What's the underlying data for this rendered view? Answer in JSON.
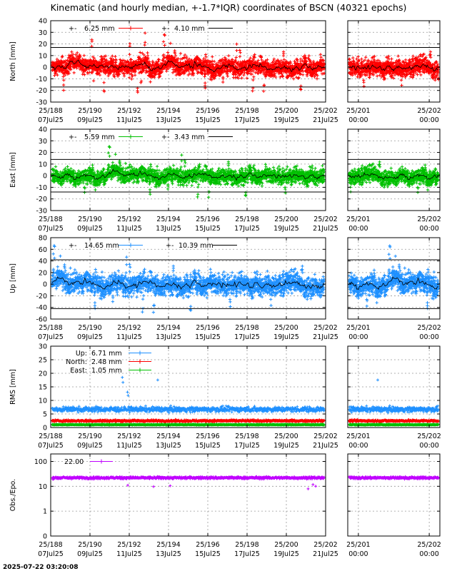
{
  "title": "Kinematic (and hourly median, +-1.7*IQR) coordinates of BSCN (40321 epochs)",
  "footer_timestamp": "2025-07-22 03:20:08",
  "colors": {
    "north": "#ff0000",
    "east": "#00c000",
    "up": "#1e90ff",
    "median": "#000000",
    "obs": "#c000ff",
    "iqr": "#000000",
    "grid": "#999999"
  },
  "x_main": {
    "ticks": [
      {
        "value": 188,
        "top": "25/188",
        "bottom": "07Jul25"
      },
      {
        "value": 190,
        "top": "25/190",
        "bottom": "09Jul25"
      },
      {
        "value": 192,
        "top": "25/192",
        "bottom": "11Jul25"
      },
      {
        "value": 194,
        "top": "25/194",
        "bottom": "13Jul25"
      },
      {
        "value": 196,
        "top": "25/196",
        "bottom": "15Jul25"
      },
      {
        "value": 198,
        "top": "25/198",
        "bottom": "17Jul25"
      },
      {
        "value": 200,
        "top": "25/200",
        "bottom": "19Jul25"
      },
      {
        "value": 202,
        "top": "25/202",
        "bottom": "21Jul25"
      }
    ],
    "range": [
      188,
      202
    ]
  },
  "x_zoom": {
    "ticks": [
      {
        "value": 201,
        "top": "25/201",
        "bottom": "00:00"
      },
      {
        "value": 202,
        "top": "25/202",
        "bottom": "00:00"
      }
    ],
    "range": [
      200.85,
      202.15
    ]
  },
  "chart_data": [
    {
      "id": "north",
      "type": "scatter",
      "ylabel": "North [mm]",
      "ylim": [
        -30,
        40
      ],
      "yticks": [
        -30,
        -20,
        -10,
        0,
        10,
        20,
        30,
        40
      ],
      "iqr_lines": [
        17,
        -17
      ],
      "legend": [
        {
          "label": "6.25 mm",
          "kind": "points"
        },
        {
          "label": "4.10 mm",
          "kind": "median"
        }
      ],
      "series": [
        {
          "kind": "points",
          "spread": 6.25
        },
        {
          "kind": "median",
          "spread": 4.1
        }
      ]
    },
    {
      "id": "east",
      "type": "scatter",
      "ylabel": "East [mm]",
      "ylim": [
        -30,
        40
      ],
      "yticks": [
        -30,
        -20,
        -10,
        0,
        10,
        20,
        30,
        40
      ],
      "iqr_lines": [
        14,
        -14
      ],
      "legend": [
        {
          "label": "5.59 mm",
          "kind": "points"
        },
        {
          "label": "3.43 mm",
          "kind": "median"
        }
      ],
      "series": [
        {
          "kind": "points",
          "spread": 5.59
        },
        {
          "kind": "median",
          "spread": 3.43
        }
      ]
    },
    {
      "id": "up",
      "type": "scatter",
      "ylabel": "Up [mm]",
      "ylim": [
        -60,
        80
      ],
      "yticks": [
        -60,
        -40,
        -20,
        0,
        20,
        40,
        60,
        80
      ],
      "iqr_lines": [
        42,
        -42
      ],
      "legend": [
        {
          "label": "14.65 mm",
          "kind": "points"
        },
        {
          "label": "10.39 mm",
          "kind": "median"
        }
      ],
      "series": [
        {
          "kind": "points",
          "spread": 14.65
        },
        {
          "kind": "median",
          "spread": 10.39
        }
      ]
    },
    {
      "id": "rms",
      "type": "scatter",
      "ylabel": "RMS [mm]",
      "ylim": [
        0,
        30
      ],
      "yticks": [
        0,
        5,
        10,
        15,
        20,
        25,
        30
      ],
      "legend": [
        {
          "name": "Up:",
          "label": "6.71 mm",
          "series": "up"
        },
        {
          "name": "North:",
          "label": "2.48 mm",
          "series": "north"
        },
        {
          "name": "East:",
          "label": "1.05 mm",
          "series": "east"
        }
      ],
      "series": [
        {
          "name": "Up:",
          "mean": 6.71
        },
        {
          "name": "North:",
          "mean": 2.48
        },
        {
          "name": "East:",
          "mean": 1.05
        }
      ]
    },
    {
      "id": "obs",
      "type": "scatter",
      "ylabel": "Obs./Epo.",
      "yscale": "log",
      "ylim": [
        0.1,
        200
      ],
      "yticks": [
        {
          "value": 0.1,
          "label": "0"
        },
        {
          "value": 1,
          "label": "1"
        },
        {
          "value": 10,
          "label": "10"
        },
        {
          "value": 100,
          "label": "100"
        }
      ],
      "legend": [
        {
          "label": "22.00",
          "kind": "points"
        }
      ],
      "series": [
        {
          "kind": "points",
          "mean": 22.0
        }
      ]
    }
  ]
}
